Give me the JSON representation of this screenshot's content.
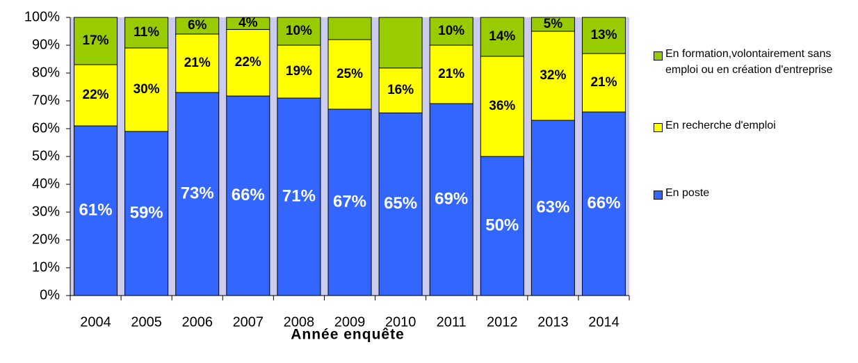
{
  "chart_data": {
    "type": "bar",
    "stacking": "percent",
    "x_label": "Année enquête",
    "categories": [
      "2004",
      "2005",
      "2006",
      "2007",
      "2008",
      "2009",
      "2010",
      "2011",
      "2012",
      "2013",
      "2014"
    ],
    "series": [
      {
        "name": "En poste",
        "color": "#3366ff",
        "values": [
          61,
          59,
          73,
          66,
          71,
          67,
          65,
          69,
          50,
          63,
          66
        ],
        "value_labels": [
          "61%",
          "59%",
          "73%",
          "66%",
          "71%",
          "67%",
          "65%",
          "69%",
          "50%",
          "63%",
          "66%"
        ]
      },
      {
        "name": "En recherche d'emploi",
        "color": "#ffff00",
        "values": [
          22,
          30,
          21,
          22,
          19,
          25,
          16,
          21,
          36,
          32,
          21
        ],
        "value_labels": [
          "22%",
          "30%",
          "21%",
          "22%",
          "19%",
          "25%",
          "16%",
          "21%",
          "36%",
          "32%",
          "21%"
        ]
      },
      {
        "name": "En formation,volontairement sans emploi ou en création d'entreprise",
        "color": "#99cc00",
        "values": [
          17,
          11,
          6,
          4,
          10,
          8,
          18,
          10,
          14,
          5,
          13
        ],
        "value_labels": [
          "17%",
          "11%",
          "6%",
          "4%",
          "10%",
          null,
          null,
          "10%",
          "14%",
          "5%",
          "13%"
        ]
      }
    ],
    "ylim": [
      0,
      100
    ],
    "yticks": [
      {
        "value": 0,
        "label": "0%"
      },
      {
        "value": 10,
        "label": "10%"
      },
      {
        "value": 20,
        "label": "20%"
      },
      {
        "value": 30,
        "label": "30%"
      },
      {
        "value": 40,
        "label": "40%"
      },
      {
        "value": 50,
        "label": "50%"
      },
      {
        "value": 60,
        "label": "60%"
      },
      {
        "value": 70,
        "label": "70%"
      },
      {
        "value": 80,
        "label": "80%"
      },
      {
        "value": 90,
        "label": "90%"
      },
      {
        "value": 100,
        "label": "100%"
      }
    ]
  }
}
